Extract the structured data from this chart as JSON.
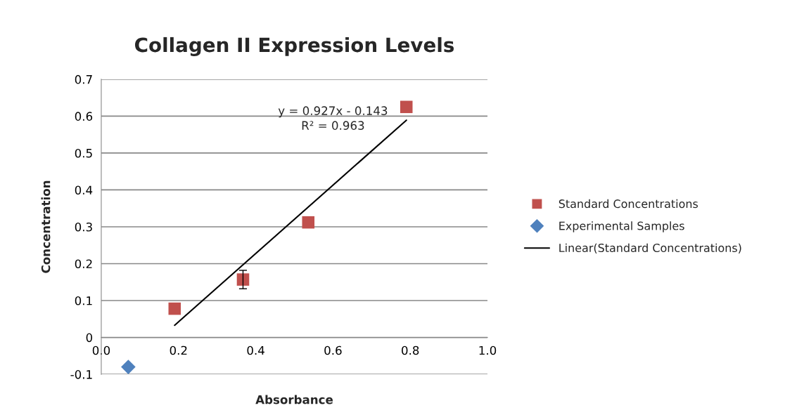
{
  "chart_data": {
    "type": "scatter",
    "title": "Collagen II Expression Levels",
    "xlabel": "Absorbance",
    "ylabel": "Concentration",
    "series": [
      {
        "name": "Standard Concentrations",
        "marker": "square",
        "color": "#c0504d",
        "x": [
          0.19,
          0.367,
          0.536,
          0.79
        ],
        "values": [
          0.078,
          0.157,
          0.312,
          0.625
        ],
        "errors": [
          null,
          0.025,
          null,
          null
        ]
      },
      {
        "name": "Experimental Samples",
        "marker": "diamond",
        "color": "#4f81bd",
        "x": [
          0.07
        ],
        "values": [
          -0.08
        ]
      },
      {
        "name": "Linear(Standard Concentrations)",
        "type": "line",
        "marker": "none",
        "color": "#000000",
        "x": [
          0.19,
          0.79
        ],
        "values": [
          0.033,
          0.589
        ]
      }
    ],
    "annotations": [
      "y = 0.927x - 0.143",
      "R² = 0.963"
    ],
    "xlim": [
      0,
      1.0
    ],
    "xticks": [
      {
        "value": 0,
        "label": "0.0"
      },
      0.2,
      0.4,
      0.6,
      0.8,
      {
        "value": 1.0,
        "label": "1.0"
      }
    ],
    "ylim": [
      -0.1,
      0.7
    ],
    "yticks": [
      -0.1,
      0,
      0.1,
      0.2,
      0.3,
      0.4,
      0.5,
      0.6,
      0.7
    ],
    "grid": "y",
    "legend": "right"
  }
}
